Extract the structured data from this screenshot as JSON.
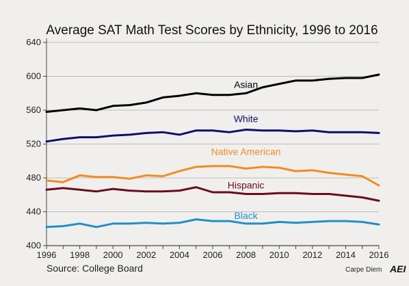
{
  "chart_data": {
    "type": "line",
    "title": "Average SAT Math Test Scores by Ethnicity, 1996 to 2016",
    "xlabel": "",
    "ylabel": "",
    "x": [
      1996,
      1997,
      1998,
      1999,
      2000,
      2001,
      2002,
      2003,
      2004,
      2005,
      2006,
      2007,
      2008,
      2009,
      2010,
      2011,
      2012,
      2013,
      2014,
      2015,
      2016
    ],
    "xlim": [
      1996,
      2016
    ],
    "ylim": [
      400,
      640
    ],
    "x_ticks": [
      "1996",
      "1998",
      "2000",
      "2002",
      "2004",
      "2006",
      "2008",
      "2010",
      "2012",
      "2014",
      "2016"
    ],
    "y_ticks": [
      "400",
      "440",
      "480",
      "520",
      "560",
      "600",
      "640"
    ],
    "grid": "horizontal",
    "series": [
      {
        "name": "Asian",
        "color": "#000000",
        "values": [
          558,
          560,
          562,
          560,
          565,
          566,
          569,
          575,
          577,
          580,
          578,
          578,
          580,
          587,
          591,
          595,
          595,
          597,
          598,
          598,
          602
        ]
      },
      {
        "name": "White",
        "color": "#0d0f6e",
        "values": [
          523,
          526,
          528,
          528,
          530,
          531,
          533,
          534,
          531,
          536,
          536,
          534,
          537,
          536,
          536,
          535,
          536,
          534,
          534,
          534,
          533
        ]
      },
      {
        "name": "Native American",
        "color": "#f28c1e",
        "values": [
          477,
          475,
          483,
          481,
          481,
          479,
          483,
          482,
          488,
          493,
          494,
          494,
          491,
          493,
          492,
          488,
          489,
          486,
          484,
          482,
          471
        ]
      },
      {
        "name": "Hispanic",
        "color": "#6b0a1a",
        "values": [
          466,
          468,
          466,
          464,
          467,
          465,
          464,
          464,
          465,
          469,
          463,
          463,
          461,
          461,
          462,
          462,
          461,
          461,
          459,
          457,
          453
        ]
      },
      {
        "name": "Black",
        "color": "#1f8fc9",
        "values": [
          422,
          423,
          426,
          422,
          426,
          426,
          427,
          426,
          427,
          431,
          429,
          429,
          426,
          426,
          428,
          427,
          428,
          429,
          429,
          428,
          425
        ]
      }
    ],
    "source": "Source: College Board",
    "credit": "Carpe Diem",
    "brand": "AEI"
  }
}
